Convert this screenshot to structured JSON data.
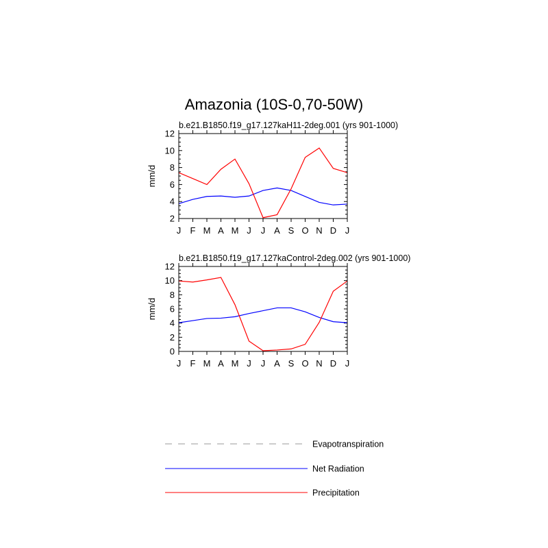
{
  "title": "Amazonia (10S-0,70-50W)",
  "chart_data": [
    {
      "type": "line",
      "subtitle": "b.e21.B1850.f19_g17.127kaH11-2deg.001 (yrs 901-1000)",
      "ylabel": "mm/d",
      "ylim": [
        2,
        12
      ],
      "yticks": [
        "2",
        "4",
        "6",
        "8",
        "10",
        "12"
      ],
      "categories": [
        "J",
        "F",
        "M",
        "A",
        "M",
        "J",
        "J",
        "A",
        "S",
        "O",
        "N",
        "D",
        "J"
      ],
      "series": [
        {
          "name": "Net Radiation",
          "color": "#0000ff",
          "values": [
            3.75,
            4.25,
            4.6,
            4.65,
            4.5,
            4.65,
            5.3,
            5.6,
            5.3,
            4.6,
            3.9,
            3.6,
            3.7
          ]
        },
        {
          "name": "Precipitation",
          "color": "#ff0000",
          "values": [
            7.4,
            6.7,
            6.0,
            7.8,
            9.0,
            6.1,
            2.1,
            2.45,
            5.5,
            9.2,
            10.3,
            7.9,
            7.4
          ]
        }
      ]
    },
    {
      "type": "line",
      "subtitle": "b.e21.B1850.f19_g17.127kaControl-2deg.002 (yrs 901-1000)",
      "ylabel": "mm/d",
      "ylim": [
        0,
        12
      ],
      "yticks": [
        "0",
        "2",
        "4",
        "6",
        "8",
        "10",
        "12"
      ],
      "categories": [
        "J",
        "F",
        "M",
        "A",
        "M",
        "J",
        "J",
        "A",
        "S",
        "O",
        "N",
        "D",
        "J"
      ],
      "series": [
        {
          "name": "Net Radiation",
          "color": "#0000ff",
          "values": [
            4.05,
            4.35,
            4.65,
            4.7,
            4.9,
            5.35,
            5.75,
            6.15,
            6.15,
            5.6,
            4.8,
            4.2,
            4.05
          ]
        },
        {
          "name": "Precipitation",
          "color": "#ff0000",
          "values": [
            9.95,
            9.8,
            10.1,
            10.45,
            6.6,
            1.45,
            0.1,
            0.2,
            0.35,
            1.0,
            4.1,
            8.5,
            9.95
          ]
        }
      ]
    }
  ],
  "legend": [
    {
      "label": "Evapotranspiration",
      "color": "#999999",
      "style": "dashed"
    },
    {
      "label": "Net Radiation",
      "color": "#0000ff",
      "style": "solid"
    },
    {
      "label": "Precipitation",
      "color": "#ff0000",
      "style": "solid"
    }
  ]
}
